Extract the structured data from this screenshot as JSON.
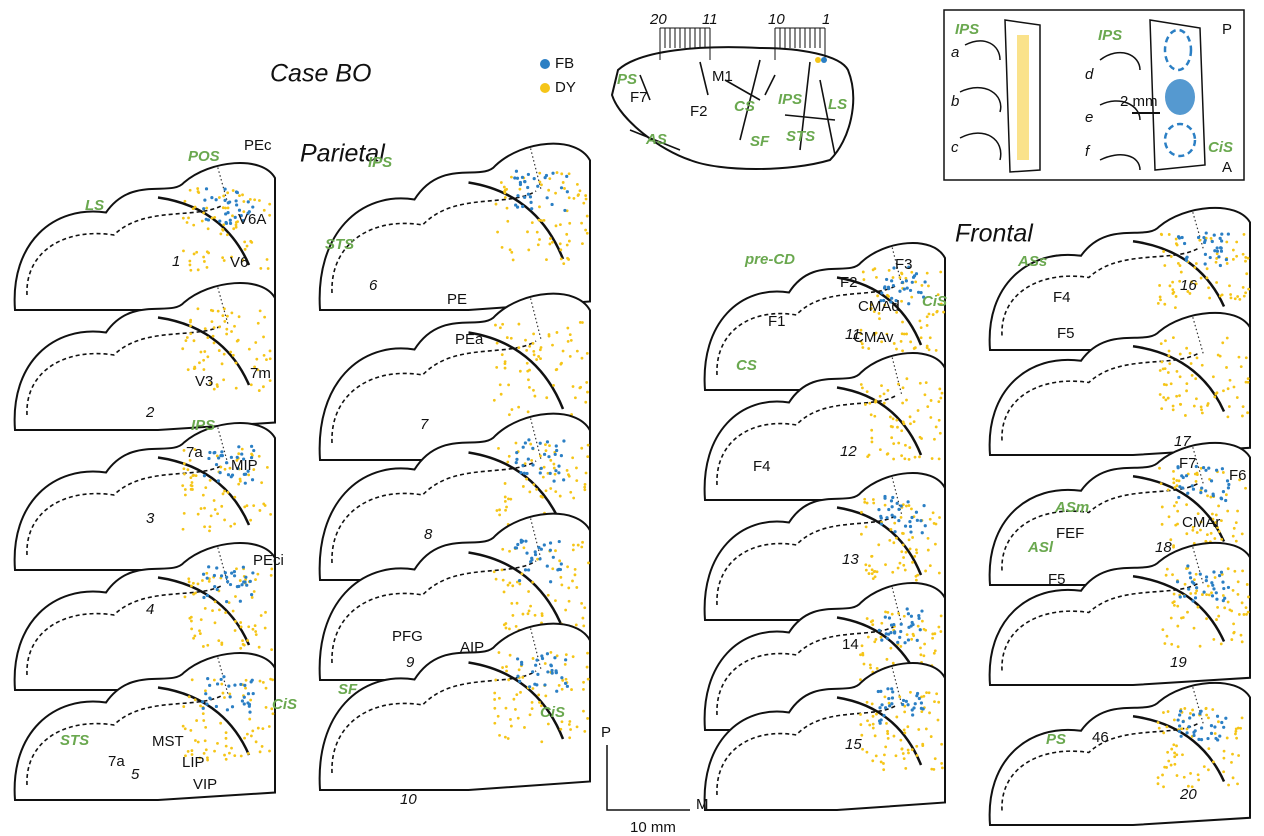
{
  "title": "Case BO",
  "headers": {
    "parietal": "Parietal",
    "frontal": "Frontal"
  },
  "legend": {
    "fb": "FB",
    "dy": "DY"
  },
  "scale": {
    "posterior": "P",
    "medial": "M",
    "length": "10 mm"
  },
  "dorsal_view": [
    "20",
    "11",
    "10",
    "1",
    "PS",
    "F7",
    "M1",
    "F2",
    "CS",
    "AS",
    "IPS",
    "LS",
    "SF",
    "STS"
  ],
  "inset": [
    "IPS",
    "a",
    "b",
    "c",
    "IPS",
    "P",
    "d",
    "2 mm",
    "e",
    "f",
    "CiS",
    "A"
  ],
  "parietal_left": [
    "POS",
    "PEc",
    "LS",
    "V6A",
    "1",
    "V6",
    "7m",
    "V3",
    "2",
    "IPS",
    "7a",
    "MIP",
    "3",
    "PEci",
    "4",
    "STS",
    "CiS",
    "7a",
    "MST",
    "LIP",
    "5",
    "VIP"
  ],
  "parietal_right": [
    "IPS",
    "STS",
    "6",
    "PE",
    "PEa",
    "7",
    "8",
    "PFG",
    "AIP",
    "9",
    "SF",
    "CiS",
    "10"
  ],
  "frontal_left": [
    "pre-CD",
    "F3",
    "F2",
    "CMAd",
    "CiS",
    "F1",
    "11",
    "CMAv",
    "CS",
    "12",
    "F4",
    "13",
    "14",
    "15"
  ],
  "frontal_right": [
    "ASs",
    "16",
    "F4",
    "F5",
    "17",
    "F7",
    "F6",
    "ASm",
    "CMAr",
    "ASl",
    "FEF",
    "18",
    "F5",
    "19",
    "PS",
    "46",
    "20"
  ]
}
